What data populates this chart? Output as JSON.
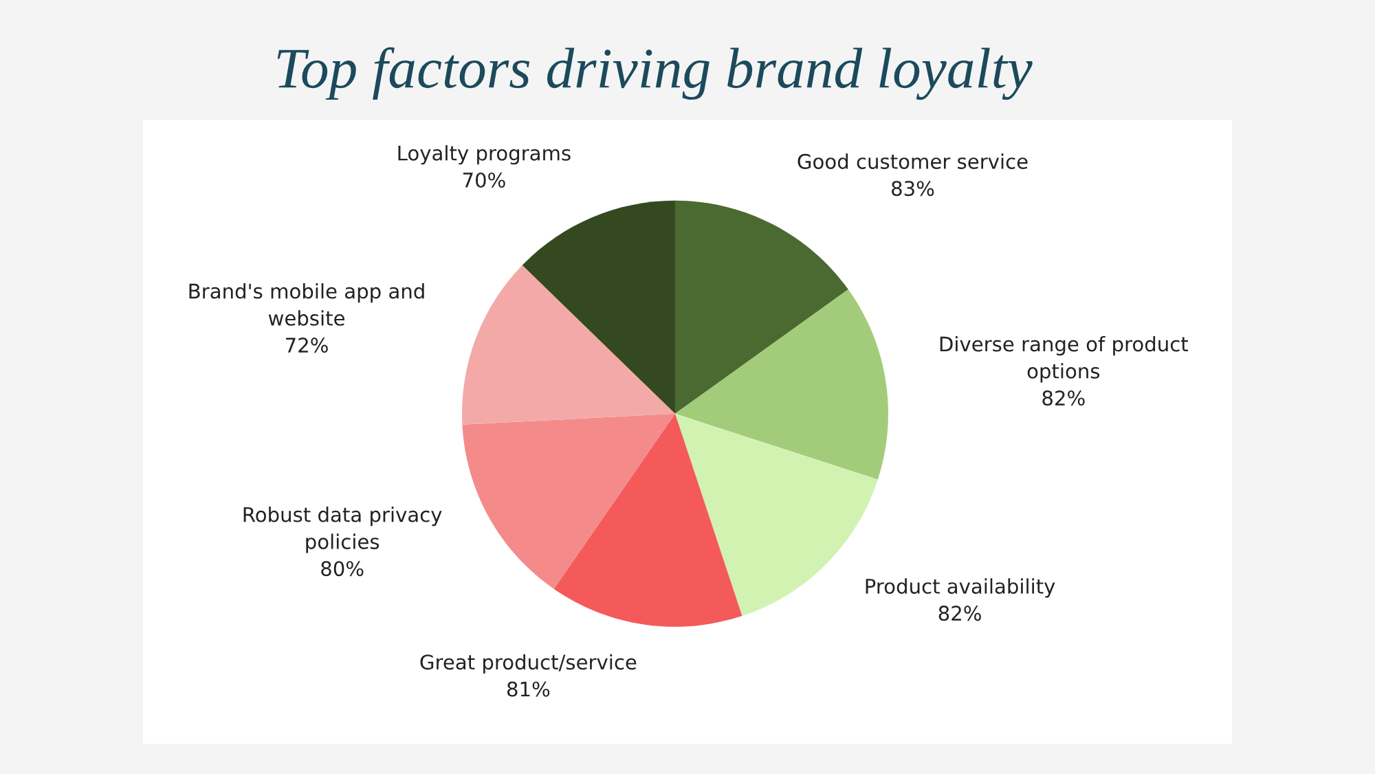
{
  "chart_data": {
    "type": "pie",
    "title": "Top factors driving brand loyalty",
    "categories": [
      "Good customer service",
      "Diverse range of product options",
      "Product availability",
      "Great product/service",
      "Robust data privacy policies",
      "Brand's mobile app and website",
      "Loyalty programs"
    ],
    "values": [
      83,
      82,
      82,
      81,
      80,
      72,
      70
    ],
    "value_labels": [
      "83%",
      "82%",
      "82%",
      "81%",
      "80%",
      "72%",
      "70%"
    ],
    "colors": [
      "#4b6a31",
      "#a3cc7a",
      "#d2f2b2",
      "#f55a5a",
      "#f58a8a",
      "#f4a9a9",
      "#34491f"
    ],
    "legend": false
  }
}
